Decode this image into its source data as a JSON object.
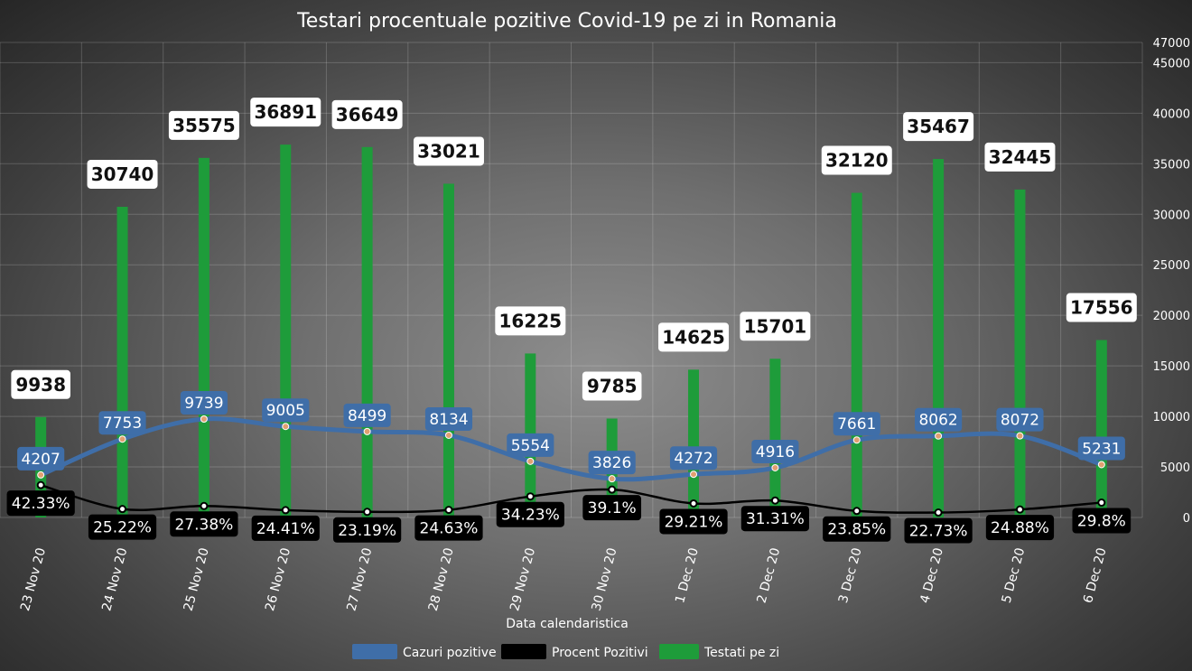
{
  "chart_data": {
    "type": "bar",
    "title": "Testari procentuale pozitive Covid-19 pe zi in Romania",
    "xlabel": "Data calendaristica",
    "categories": [
      "23 Nov 20",
      "24 Nov 20",
      "25 Nov 20",
      "26 Nov 20",
      "27 Nov 20",
      "28 Nov 20",
      "29 Nov 20",
      "30 Nov 20",
      "1 Dec 20",
      "2 Dec 20",
      "3 Dec 20",
      "4 Dec 20",
      "5 Dec 20",
      "6 Dec 20"
    ],
    "y_ticks": [
      0,
      5000,
      10000,
      15000,
      20000,
      25000,
      30000,
      35000,
      40000,
      45000,
      47000
    ],
    "ylim": [
      0,
      47000
    ],
    "grid": true,
    "legend_position": "bottom",
    "series": [
      {
        "name": "Cazuri pozitive",
        "type": "line",
        "color": "#3f6ea8",
        "values": [
          4207,
          7753,
          9739,
          9005,
          8499,
          8134,
          5554,
          3826,
          4272,
          4916,
          7661,
          8062,
          8072,
          5231
        ]
      },
      {
        "name": "Procent Pozitivi",
        "type": "line",
        "color": "#000000",
        "values": [
          42.33,
          25.22,
          27.38,
          24.41,
          23.19,
          24.63,
          34.23,
          39.1,
          29.21,
          31.31,
          23.85,
          22.73,
          24.88,
          29.8
        ],
        "labels": [
          "42.33%",
          "25.22%",
          "27.38%",
          "24.41%",
          "23.19%",
          "24.63%",
          "34.23%",
          "39.1%",
          "29.21%",
          "31.31%",
          "23.85%",
          "22.73%",
          "24.88%",
          "29.8%"
        ]
      },
      {
        "name": "Testati pe zi",
        "type": "bar",
        "color": "#1e9c3a",
        "values": [
          9938,
          30740,
          35575,
          36891,
          36649,
          33021,
          16225,
          9785,
          14625,
          15701,
          32120,
          35467,
          32445,
          17556
        ]
      }
    ]
  }
}
